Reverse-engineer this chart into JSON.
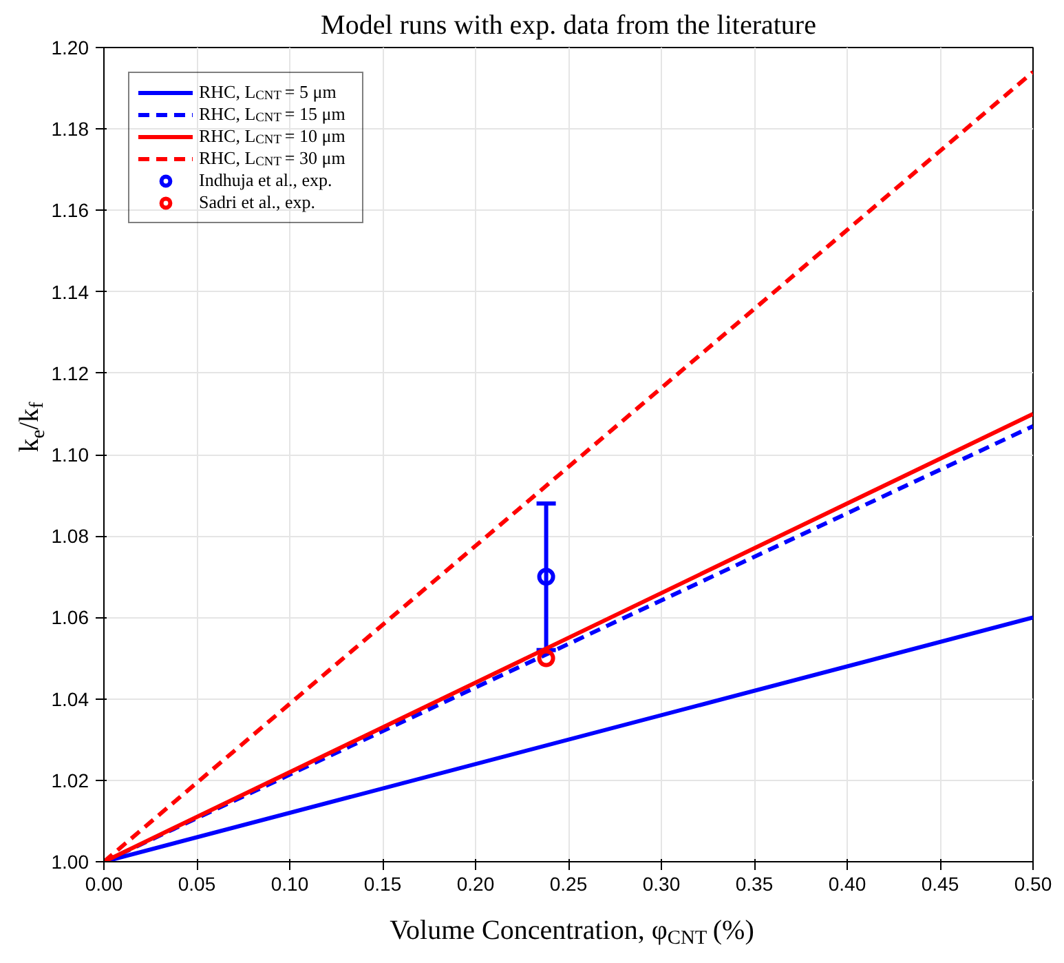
{
  "chart_data": {
    "type": "line",
    "title": "Model runs with exp. data from the literature",
    "xlabel": "Volume Concentration, φ$_{CNT}$ (%)",
    "ylabel": "k$_{e}$/k$_{f}$",
    "xlim": [
      0,
      0.5
    ],
    "ylim": [
      1.0,
      1.2
    ],
    "xticks": [
      {
        "value": 0,
        "label": "0.00"
      },
      {
        "value": 0.05,
        "label": "0.05"
      },
      {
        "value": 0.1,
        "label": "0.10"
      },
      {
        "value": 0.15,
        "label": "0.15"
      },
      {
        "value": 0.2,
        "label": "0.20"
      },
      {
        "value": 0.25,
        "label": "0.25"
      },
      {
        "value": 0.3,
        "label": "0.30"
      },
      {
        "value": 0.35,
        "label": "0.35"
      },
      {
        "value": 0.4,
        "label": "0.40"
      },
      {
        "value": 0.45,
        "label": "0.45"
      },
      {
        "value": 0.5,
        "label": "0.50"
      }
    ],
    "yticks": [
      {
        "value": 1.0,
        "label": "1.00"
      },
      {
        "value": 1.02,
        "label": "1.02"
      },
      {
        "value": 1.04,
        "label": "1.04"
      },
      {
        "value": 1.06,
        "label": "1.06"
      },
      {
        "value": 1.08,
        "label": "1.08"
      },
      {
        "value": 1.1,
        "label": "1.10"
      },
      {
        "value": 1.12,
        "label": "1.12"
      },
      {
        "value": 1.14,
        "label": "1.14"
      },
      {
        "value": 1.16,
        "label": "1.16"
      },
      {
        "value": 1.18,
        "label": "1.18"
      },
      {
        "value": 1.2,
        "label": "1.20"
      }
    ],
    "grid": true,
    "legend": "top left",
    "series": [
      {
        "name": "RHC, L$_{CNT}$ = 5 μm",
        "color": "#0000ff",
        "line_style": "solid",
        "marker": "none",
        "x": [
          0,
          0.5
        ],
        "values": [
          1.0,
          1.06
        ]
      },
      {
        "name": "RHC, L$_{CNT}$ = 15 μm",
        "color": "#0000ff",
        "line_style": "dashed",
        "marker": "none",
        "x": [
          0,
          0.5
        ],
        "values": [
          1.0,
          1.107
        ]
      },
      {
        "name": "RHC, L$_{CNT}$ = 10 μm",
        "color": "#ff0000",
        "line_style": "solid",
        "marker": "none",
        "x": [
          0,
          0.5
        ],
        "values": [
          1.0,
          1.11
        ]
      },
      {
        "name": "RHC, L$_{CNT}$ = 30 μm",
        "color": "#ff0000",
        "line_style": "dashed",
        "marker": "none",
        "x": [
          0,
          0.5
        ],
        "values": [
          1.0,
          1.194
        ]
      },
      {
        "name": "Indhuja et al., exp.",
        "color": "#0000ff",
        "type": "scatter",
        "marker": "circle",
        "x": [
          0.238
        ],
        "values": [
          1.07
        ],
        "errors": [
          [
            1.052,
            1.088
          ]
        ]
      },
      {
        "name": "Sadri et al., exp.",
        "color": "#ff0000",
        "type": "scatter",
        "marker": "circle",
        "x": [
          0.238
        ],
        "values": [
          1.05
        ]
      }
    ]
  }
}
